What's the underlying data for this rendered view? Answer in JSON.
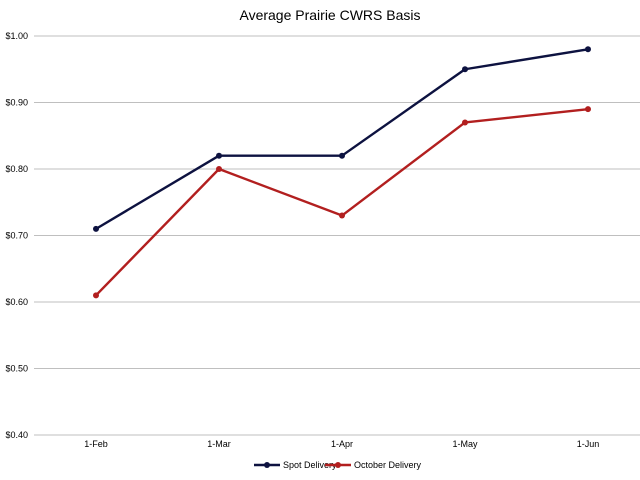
{
  "chart_data": {
    "type": "line",
    "title": "Average Prairie CWRS Basis",
    "categories": [
      "1-Feb",
      "1-Mar",
      "1-Apr",
      "1-May",
      "1-Jun"
    ],
    "ylim": [
      0.4,
      1.0
    ],
    "yticks": [
      "$0.40",
      "$0.50",
      "$0.60",
      "$0.70",
      "$0.80",
      "$0.90",
      "$1.00"
    ],
    "grid": true,
    "legend_position": "bottom",
    "series": [
      {
        "name": "Spot Delivery",
        "color": "#0d1240",
        "values": [
          0.71,
          0.82,
          0.82,
          0.95,
          0.98
        ]
      },
      {
        "name": "October Delivery",
        "color": "#b21f1f",
        "values": [
          0.61,
          0.8,
          0.73,
          0.87,
          0.89
        ]
      }
    ]
  }
}
